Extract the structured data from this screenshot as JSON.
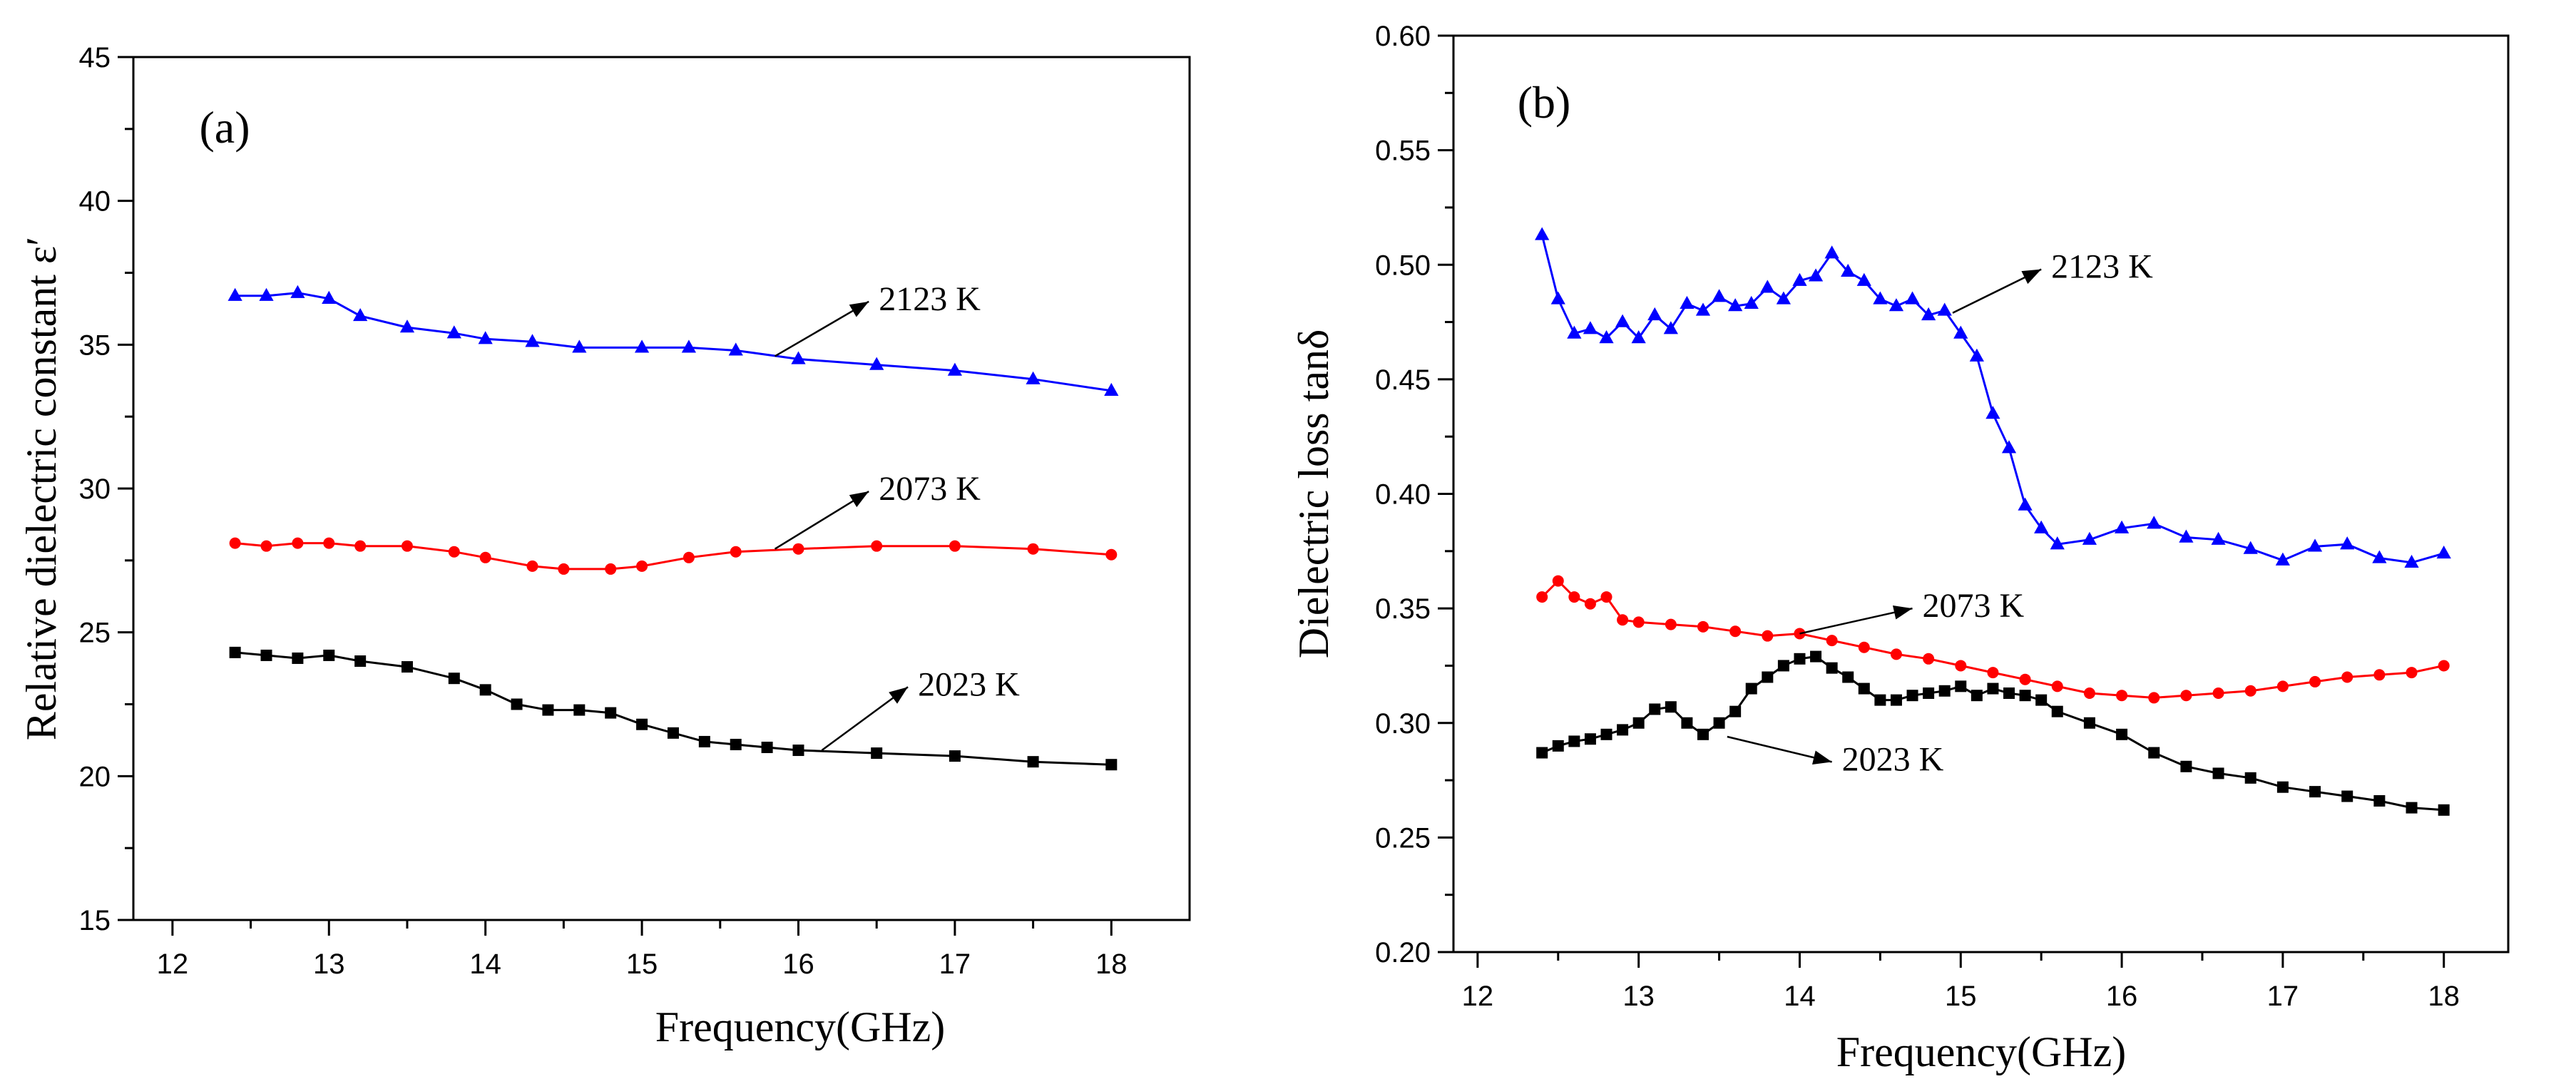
{
  "chart_data": [
    {
      "type": "scatter",
      "panel_label": "(a)",
      "xlabel": "Frequency(GHz)",
      "ylabel": "Relative dielectric constant ε′",
      "xlim": [
        11.75,
        18.5
      ],
      "ylim": [
        15,
        45
      ],
      "xticks": [
        "12",
        "13",
        "14",
        "15",
        "16",
        "17",
        "18"
      ],
      "yticks": [
        "15",
        "20",
        "25",
        "30",
        "35",
        "40",
        "45"
      ],
      "grid": false,
      "series": [
        {
          "name": "2123 K",
          "color": "#0000ff",
          "marker": "triangle",
          "x": [
            12.4,
            12.6,
            12.8,
            13.0,
            13.2,
            13.5,
            13.8,
            14.0,
            14.3,
            14.6,
            15.0,
            15.3,
            15.6,
            16.0,
            16.5,
            17.0,
            17.5,
            18.0
          ],
          "y": [
            36.7,
            36.7,
            36.8,
            36.6,
            36.0,
            35.6,
            35.4,
            35.2,
            35.1,
            34.9,
            34.9,
            34.9,
            34.8,
            34.5,
            34.3,
            34.1,
            33.8,
            33.4
          ]
        },
        {
          "name": "2073 K",
          "color": "#ff0000",
          "marker": "circle",
          "x": [
            12.4,
            12.6,
            12.8,
            13.0,
            13.2,
            13.5,
            13.8,
            14.0,
            14.3,
            14.5,
            14.8,
            15.0,
            15.3,
            15.6,
            16.0,
            16.5,
            17.0,
            17.5,
            18.0
          ],
          "y": [
            28.1,
            28.0,
            28.1,
            28.1,
            28.0,
            28.0,
            27.8,
            27.6,
            27.3,
            27.2,
            27.2,
            27.3,
            27.6,
            27.8,
            27.9,
            28.0,
            28.0,
            27.9,
            27.7
          ]
        },
        {
          "name": "2023 K",
          "color": "#000000",
          "marker": "square",
          "x": [
            12.4,
            12.6,
            12.8,
            13.0,
            13.2,
            13.5,
            13.8,
            14.0,
            14.2,
            14.4,
            14.6,
            14.8,
            15.0,
            15.2,
            15.4,
            15.6,
            15.8,
            16.0,
            16.5,
            17.0,
            17.5,
            18.0
          ],
          "y": [
            24.3,
            24.2,
            24.1,
            24.2,
            24.0,
            23.8,
            23.4,
            23.0,
            22.5,
            22.3,
            22.3,
            22.2,
            21.8,
            21.5,
            21.2,
            21.1,
            21.0,
            20.9,
            20.8,
            20.7,
            20.5,
            20.4
          ]
        }
      ],
      "annotations": [
        {
          "text": "2123 K",
          "series": 0,
          "x_from": 15.85,
          "y_from": 34.6,
          "x_to": 16.45,
          "y_to": 36.5
        },
        {
          "text": "2073 K",
          "series": 1,
          "x_from": 15.85,
          "y_from": 27.9,
          "x_to": 16.45,
          "y_to": 29.9
        },
        {
          "text": "2023 K",
          "series": 2,
          "x_from": 16.15,
          "y_from": 20.9,
          "x_to": 16.7,
          "y_to": 23.1
        }
      ]
    },
    {
      "type": "scatter",
      "panel_label": "(b)",
      "xlabel": "Frequency(GHz)",
      "ylabel": "Dielectric loss tanδ",
      "xlim": [
        11.85,
        18.4
      ],
      "ylim": [
        0.2,
        0.6
      ],
      "xticks": [
        "12",
        "13",
        "14",
        "15",
        "16",
        "17",
        "18"
      ],
      "yticks": [
        "0.20",
        "0.25",
        "0.30",
        "0.35",
        "0.40",
        "0.45",
        "0.50",
        "0.55",
        "0.60"
      ],
      "grid": false,
      "series": [
        {
          "name": "2123 K",
          "color": "#0000ff",
          "marker": "triangle",
          "x": [
            12.4,
            12.5,
            12.6,
            12.7,
            12.8,
            12.9,
            13.0,
            13.1,
            13.2,
            13.3,
            13.4,
            13.5,
            13.6,
            13.7,
            13.8,
            13.9,
            14.0,
            14.1,
            14.2,
            14.3,
            14.4,
            14.5,
            14.6,
            14.7,
            14.8,
            14.9,
            15.0,
            15.1,
            15.2,
            15.3,
            15.4,
            15.5,
            15.6,
            15.8,
            16.0,
            16.2,
            16.4,
            16.6,
            16.8,
            17.0,
            17.2,
            17.4,
            17.6,
            17.8,
            18.0
          ],
          "y": [
            0.513,
            0.485,
            0.47,
            0.472,
            0.468,
            0.475,
            0.468,
            0.478,
            0.472,
            0.483,
            0.48,
            0.486,
            0.482,
            0.483,
            0.49,
            0.485,
            0.493,
            0.495,
            0.505,
            0.497,
            0.493,
            0.485,
            0.482,
            0.485,
            0.478,
            0.48,
            0.47,
            0.46,
            0.435,
            0.42,
            0.395,
            0.385,
            0.378,
            0.38,
            0.385,
            0.387,
            0.381,
            0.38,
            0.376,
            0.371,
            0.377,
            0.378,
            0.372,
            0.37,
            0.374
          ]
        },
        {
          "name": "2073 K",
          "color": "#ff0000",
          "marker": "circle",
          "x": [
            12.4,
            12.5,
            12.6,
            12.7,
            12.8,
            12.9,
            13.0,
            13.2,
            13.4,
            13.6,
            13.8,
            14.0,
            14.2,
            14.4,
            14.6,
            14.8,
            15.0,
            15.2,
            15.4,
            15.6,
            15.8,
            16.0,
            16.2,
            16.4,
            16.6,
            16.8,
            17.0,
            17.2,
            17.4,
            17.6,
            17.8,
            18.0
          ],
          "y": [
            0.355,
            0.362,
            0.355,
            0.352,
            0.355,
            0.345,
            0.344,
            0.343,
            0.342,
            0.34,
            0.338,
            0.339,
            0.336,
            0.333,
            0.33,
            0.328,
            0.325,
            0.322,
            0.319,
            0.316,
            0.313,
            0.312,
            0.311,
            0.312,
            0.313,
            0.314,
            0.316,
            0.318,
            0.32,
            0.321,
            0.322,
            0.325
          ]
        },
        {
          "name": "2023 K",
          "color": "#000000",
          "marker": "square",
          "x": [
            12.4,
            12.5,
            12.6,
            12.7,
            12.8,
            12.9,
            13.0,
            13.1,
            13.2,
            13.3,
            13.4,
            13.5,
            13.6,
            13.7,
            13.8,
            13.9,
            14.0,
            14.1,
            14.2,
            14.3,
            14.4,
            14.5,
            14.6,
            14.7,
            14.8,
            14.9,
            15.0,
            15.1,
            15.2,
            15.3,
            15.4,
            15.5,
            15.6,
            15.8,
            16.0,
            16.2,
            16.4,
            16.6,
            16.8,
            17.0,
            17.2,
            17.4,
            17.6,
            17.8,
            18.0
          ],
          "y": [
            0.287,
            0.29,
            0.292,
            0.293,
            0.295,
            0.297,
            0.3,
            0.306,
            0.307,
            0.3,
            0.295,
            0.3,
            0.305,
            0.315,
            0.32,
            0.325,
            0.328,
            0.329,
            0.324,
            0.32,
            0.315,
            0.31,
            0.31,
            0.312,
            0.313,
            0.314,
            0.316,
            0.312,
            0.315,
            0.313,
            0.312,
            0.31,
            0.305,
            0.3,
            0.295,
            0.287,
            0.281,
            0.278,
            0.276,
            0.272,
            0.27,
            0.268,
            0.266,
            0.263,
            0.262
          ]
        }
      ],
      "annotations": [
        {
          "text": "2123 K",
          "series": 0,
          "x_from": 14.95,
          "y_from": 0.479,
          "x_to": 15.5,
          "y_to": 0.498
        },
        {
          "text": "2073 K",
          "series": 1,
          "x_from": 14.0,
          "y_from": 0.339,
          "x_to": 14.7,
          "y_to": 0.35
        },
        {
          "text": "2023 K",
          "series": 2,
          "x_from": 13.55,
          "y_from": 0.294,
          "x_to": 14.2,
          "y_to": 0.283
        }
      ]
    }
  ]
}
